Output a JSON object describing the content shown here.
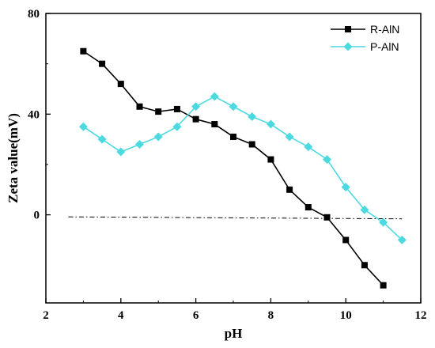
{
  "chart_data": {
    "type": "line",
    "xlabel": "pH",
    "ylabel": "Zeta value(mV)",
    "xlim": [
      2,
      12
    ],
    "ylim": [
      -35,
      80
    ],
    "xticks": [
      2,
      4,
      6,
      8,
      10,
      12
    ],
    "yticks": [
      0,
      40,
      80
    ],
    "legend_position": "top-right",
    "grid": false,
    "series": [
      {
        "name": "R-AlN",
        "color": "#000000",
        "marker": "square",
        "x": [
          3,
          3.5,
          4,
          4.5,
          5,
          5.5,
          6,
          6.5,
          7,
          7.5,
          8,
          8.5,
          9,
          9.5,
          10,
          10.5,
          11
        ],
        "y": [
          65,
          60,
          52,
          43,
          41,
          42,
          38,
          36,
          31,
          28,
          22,
          10,
          3,
          -1,
          -10,
          -20,
          -28
        ]
      },
      {
        "name": "P-AlN",
        "color": "#4dd9e0",
        "marker": "diamond",
        "x": [
          3,
          3.5,
          4,
          4.5,
          5,
          5.5,
          6,
          6.5,
          7,
          7.5,
          8,
          8.5,
          9,
          9.5,
          10,
          10.5,
          11,
          11.5
        ],
        "y": [
          35,
          30,
          25,
          28,
          31,
          35,
          43,
          47,
          43,
          39,
          36,
          31,
          27,
          22,
          11,
          2,
          -3,
          -10
        ]
      }
    ],
    "reference_line": {
      "style": "dash-dot",
      "color": "#000000",
      "x": [
        2.6,
        11.5
      ],
      "y": [
        -0.8,
        -1.6
      ]
    }
  }
}
